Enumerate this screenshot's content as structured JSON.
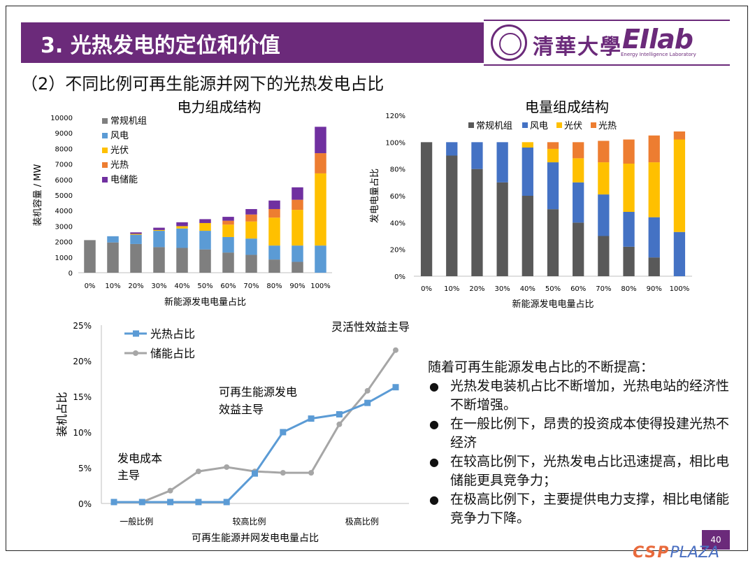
{
  "slide": {
    "title": "3. 光热发电的定位和价值",
    "subtitle": "（2）不同比例可再生能源并网下的光热发电占比",
    "logo_cn": "清華大學",
    "logo_en": "EIlab",
    "logo_en_sub": "Energy Intelligence Laboratory",
    "page_number": "40",
    "watermark_a": "CSP",
    "watermark_b": "PLAZA"
  },
  "colors": {
    "brand": "#6b2a7a",
    "conv": "#7f7f7f",
    "wind": "#5b9bd5",
    "pv": "#ffc000",
    "csp": "#ed7d31",
    "storage": "#7030a0",
    "wind2": "#4472c4",
    "conv2": "#595959",
    "line_csp": "#5b9bd5",
    "line_storage": "#a6a6a6"
  },
  "chart_data": [
    {
      "type": "bar",
      "stacked": true,
      "title": "电力组成结构",
      "xlabel": "新能源发电电量占比",
      "ylabel": "装机容量 / MW",
      "ylim": [
        0,
        10000
      ],
      "yticks": [
        0,
        1000,
        2000,
        3000,
        4000,
        5000,
        6000,
        7000,
        8000,
        9000,
        10000
      ],
      "categories": [
        "0%",
        "10%",
        "20%",
        "30%",
        "40%",
        "50%",
        "60%",
        "70%",
        "80%",
        "90%",
        "100%"
      ],
      "legend": "left",
      "series": [
        {
          "name": "常规机组",
          "color": "#7f7f7f",
          "values": [
            2100,
            1950,
            1850,
            1650,
            1600,
            1500,
            1300,
            1150,
            850,
            700,
            0
          ]
        },
        {
          "name": "风电",
          "color": "#5b9bd5",
          "values": [
            0,
            400,
            600,
            1050,
            1250,
            1200,
            1000,
            1050,
            900,
            1050,
            1750
          ]
        },
        {
          "name": "光伏",
          "color": "#ffc000",
          "values": [
            0,
            0,
            50,
            50,
            150,
            500,
            800,
            1100,
            1800,
            2300,
            4650
          ]
        },
        {
          "name": "光热",
          "color": "#ed7d31",
          "values": [
            0,
            0,
            0,
            0,
            0,
            0,
            250,
            450,
            550,
            650,
            1300
          ]
        },
        {
          "name": "电储能",
          "color": "#7030a0",
          "values": [
            0,
            0,
            100,
            150,
            250,
            250,
            250,
            350,
            550,
            800,
            1700
          ]
        }
      ]
    },
    {
      "type": "bar",
      "stacked": true,
      "title": "电量组成结构",
      "xlabel": "新能源发电电量占比",
      "ylabel": "发电电量占比",
      "ylim": [
        0,
        120
      ],
      "yticks": [
        "0%",
        "20%",
        "40%",
        "60%",
        "80%",
        "100%",
        "120%"
      ],
      "categories": [
        "0%",
        "10%",
        "20%",
        "30%",
        "40%",
        "50%",
        "60%",
        "70%",
        "80%",
        "90%",
        "100%"
      ],
      "legend": "top",
      "series": [
        {
          "name": "常规机组",
          "color": "#595959",
          "values": [
            100,
            90,
            80,
            70,
            60,
            50,
            40,
            30,
            22,
            14,
            0
          ]
        },
        {
          "name": "风电",
          "color": "#4472c4",
          "values": [
            0,
            10,
            20,
            30,
            36,
            35,
            30,
            31,
            26,
            30,
            33
          ]
        },
        {
          "name": "光伏",
          "color": "#ffc000",
          "values": [
            0,
            0,
            0,
            0,
            4,
            10,
            18,
            24,
            36,
            41,
            69
          ]
        },
        {
          "name": "光热",
          "color": "#ed7d31",
          "values": [
            0,
            0,
            0,
            0,
            0,
            5,
            12,
            16,
            18,
            20,
            6
          ]
        }
      ]
    },
    {
      "type": "line",
      "title": "",
      "xlabel": "可再生能源并网发电电量占比",
      "ylabel": "装机占比",
      "ylim": [
        0,
        25
      ],
      "yticks": [
        "0%",
        "5%",
        "10%",
        "15%",
        "20%",
        "25%"
      ],
      "x": [
        0,
        1,
        2,
        3,
        4,
        5,
        6,
        7,
        8,
        9,
        10
      ],
      "xtick_labels": [
        {
          "x": 1,
          "label": "一般比例"
        },
        {
          "x": 5,
          "label": "较高比例"
        },
        {
          "x": 9,
          "label": "极高比例"
        }
      ],
      "legend": "top-left",
      "series": [
        {
          "name": "光热占比",
          "color": "#5b9bd5",
          "marker": "square",
          "values": [
            0.2,
            0.2,
            0.2,
            0.2,
            0.2,
            4.2,
            10.0,
            11.9,
            12.5,
            14.1,
            16.3
          ]
        },
        {
          "name": "储能占比",
          "color": "#a6a6a6",
          "marker": "circle",
          "values": [
            0.2,
            0.2,
            1.8,
            4.5,
            5.1,
            4.5,
            4.3,
            4.3,
            11.1,
            15.8,
            21.5
          ]
        }
      ],
      "annotations": [
        "灵活性效益主导",
        "可再生能源发电效益主导",
        "发电成本主导"
      ]
    }
  ],
  "bullets": {
    "intro": "随着可再生能源发电占比的不断提高：",
    "items": [
      "光热发电装机占比不断增加，光热电站的经济性不断增强。",
      "在一般比例下，昂贵的投资成本使得投建光热不经济",
      "在较高比例下，光热发电占比迅速提高，相比电储能更具竞争力；",
      "在极高比例下，主要提供电力支撑，相比电储能竞争力下降。"
    ]
  }
}
